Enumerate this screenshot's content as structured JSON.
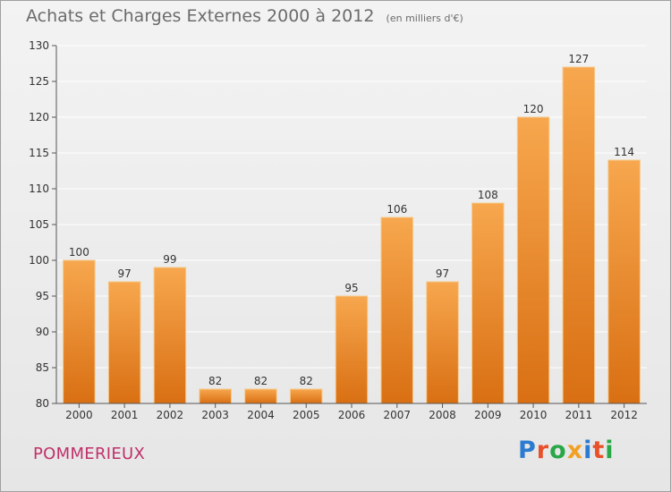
{
  "header": {
    "title": "Achats et Charges Externes 2000 à 2012",
    "unit": "(en milliers d'€)"
  },
  "footer": {
    "place": "POMMERIEUX",
    "logo_text": "Proxiti",
    "logo_colors": [
      "#2b7bd0",
      "#e8512a",
      "#2aa748",
      "#f2a024",
      "#2b7bd0",
      "#e8512a",
      "#2aa748"
    ]
  },
  "colors": {
    "bar_top": "#f7a74e",
    "bar_bottom": "#d96f13",
    "bar_edge": "#f6c98a",
    "axis": "#555555",
    "grid": "#ffffff",
    "label": "#333333"
  },
  "chart_data": {
    "type": "bar",
    "categories": [
      "2000",
      "2001",
      "2002",
      "2003",
      "2004",
      "2005",
      "2006",
      "2007",
      "2008",
      "2009",
      "2010",
      "2011",
      "2012"
    ],
    "values": [
      100,
      97,
      99,
      82,
      82,
      82,
      95,
      106,
      97,
      108,
      120,
      127,
      114
    ],
    "ylim": [
      80,
      130
    ],
    "yticks": [
      80,
      85,
      90,
      95,
      100,
      105,
      110,
      115,
      120,
      125,
      130
    ],
    "grid": true,
    "data_labels": true
  }
}
